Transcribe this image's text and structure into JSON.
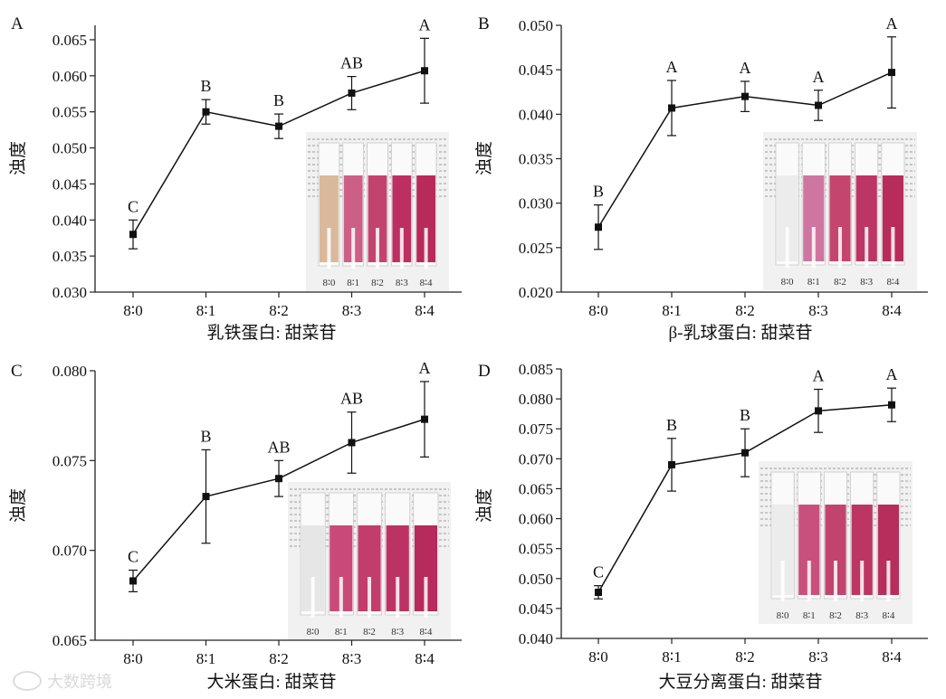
{
  "watermark": "大数跨境",
  "chart_data": [
    {
      "type": "line",
      "panel": "A",
      "xlabel": "乳铁蛋白: 甜菜苷",
      "ylabel": "浊度",
      "categories": [
        "8∶0",
        "8∶1",
        "8∶2",
        "8∶3",
        "8∶4"
      ],
      "values": [
        0.038,
        0.055,
        0.053,
        0.0576,
        0.0607
      ],
      "errors": [
        0.002,
        0.0017,
        0.0017,
        0.0023,
        0.0045
      ],
      "letters": [
        "C",
        "B",
        "B",
        "AB",
        "A"
      ],
      "ylim": [
        0.03,
        0.067
      ],
      "yticks": [
        "0.030",
        "0.035",
        "0.040",
        "0.045",
        "0.050",
        "0.055",
        "0.060",
        "0.065"
      ],
      "ytick_values": [
        0.03,
        0.035,
        0.04,
        0.045,
        0.05,
        0.055,
        0.06,
        0.065
      ],
      "inset_labels": [
        "8∶0",
        "8∶1",
        "8∶2",
        "8∶3",
        "8∶4"
      ],
      "inset_colors": [
        "#d9b99a",
        "#cc5f86",
        "#c3436f",
        "#bd2f60",
        "#b82a5a"
      ]
    },
    {
      "type": "line",
      "panel": "B",
      "xlabel": "β-乳球蛋白: 甜菜苷",
      "ylabel": "浊度",
      "categories": [
        "8∶0",
        "8∶1",
        "8∶2",
        "8∶3",
        "8∶4"
      ],
      "values": [
        0.0273,
        0.0407,
        0.042,
        0.041,
        0.0447
      ],
      "errors": [
        0.0025,
        0.0031,
        0.0017,
        0.0017,
        0.004
      ],
      "letters": [
        "B",
        "A",
        "A",
        "A",
        "A"
      ],
      "ylim": [
        0.02,
        0.05
      ],
      "yticks": [
        "0.020",
        "0.025",
        "0.030",
        "0.035",
        "0.040",
        "0.045",
        "0.050"
      ],
      "ytick_values": [
        0.02,
        0.025,
        0.03,
        0.035,
        0.04,
        0.045,
        0.05
      ],
      "inset_labels": [
        "8∶0",
        "8∶1",
        "8∶2",
        "8∶3",
        "8∶4"
      ],
      "inset_colors": [
        "#ececec",
        "#cf76a0",
        "#c4466f",
        "#bd3564",
        "#b82c5b"
      ]
    },
    {
      "type": "line",
      "panel": "C",
      "xlabel": "大米蛋白: 甜菜苷",
      "ylabel": "浊度",
      "categories": [
        "8∶0",
        "8∶1",
        "8∶2",
        "8∶3",
        "8∶4"
      ],
      "values": [
        0.0683,
        0.073,
        0.074,
        0.076,
        0.0773
      ],
      "errors": [
        0.0006,
        0.0026,
        0.001,
        0.0017,
        0.0021
      ],
      "letters": [
        "C",
        "B",
        "AB",
        "AB",
        "A"
      ],
      "ylim": [
        0.065,
        0.08
      ],
      "yticks": [
        "0.065",
        "0.070",
        "0.075",
        "0.080"
      ],
      "ytick_values": [
        0.065,
        0.07,
        0.075,
        0.08
      ],
      "inset_labels": [
        "8∶0",
        "8∶1",
        "8∶2",
        "8∶3",
        "8∶4"
      ],
      "inset_colors": [
        "#e6e6e6",
        "#c94a78",
        "#c23d6c",
        "#bc3363",
        "#b62b5b"
      ]
    },
    {
      "type": "line",
      "panel": "D",
      "xlabel": "大豆分离蛋白: 甜菜苷",
      "ylabel": "浊度",
      "categories": [
        "8∶0",
        "8∶1",
        "8∶2",
        "8∶3",
        "8∶4"
      ],
      "values": [
        0.0477,
        0.069,
        0.071,
        0.078,
        0.079
      ],
      "errors": [
        0.0011,
        0.0044,
        0.004,
        0.0036,
        0.0028
      ],
      "letters": [
        "C",
        "B",
        "B",
        "A",
        "A"
      ],
      "ylim": [
        0.04,
        0.085
      ],
      "yticks": [
        "0.040",
        "0.045",
        "0.050",
        "0.055",
        "0.060",
        "0.065",
        "0.070",
        "0.075",
        "0.080",
        "0.085"
      ],
      "ytick_values": [
        0.04,
        0.045,
        0.05,
        0.055,
        0.06,
        0.065,
        0.07,
        0.075,
        0.08,
        0.085
      ],
      "inset_labels": [
        "8∶0",
        "8∶1",
        "8∶2",
        "8∶3",
        "8∶4"
      ],
      "inset_colors": [
        "#ececec",
        "#c9507c",
        "#c2436e",
        "#bc3664",
        "#b72d5c"
      ]
    }
  ]
}
